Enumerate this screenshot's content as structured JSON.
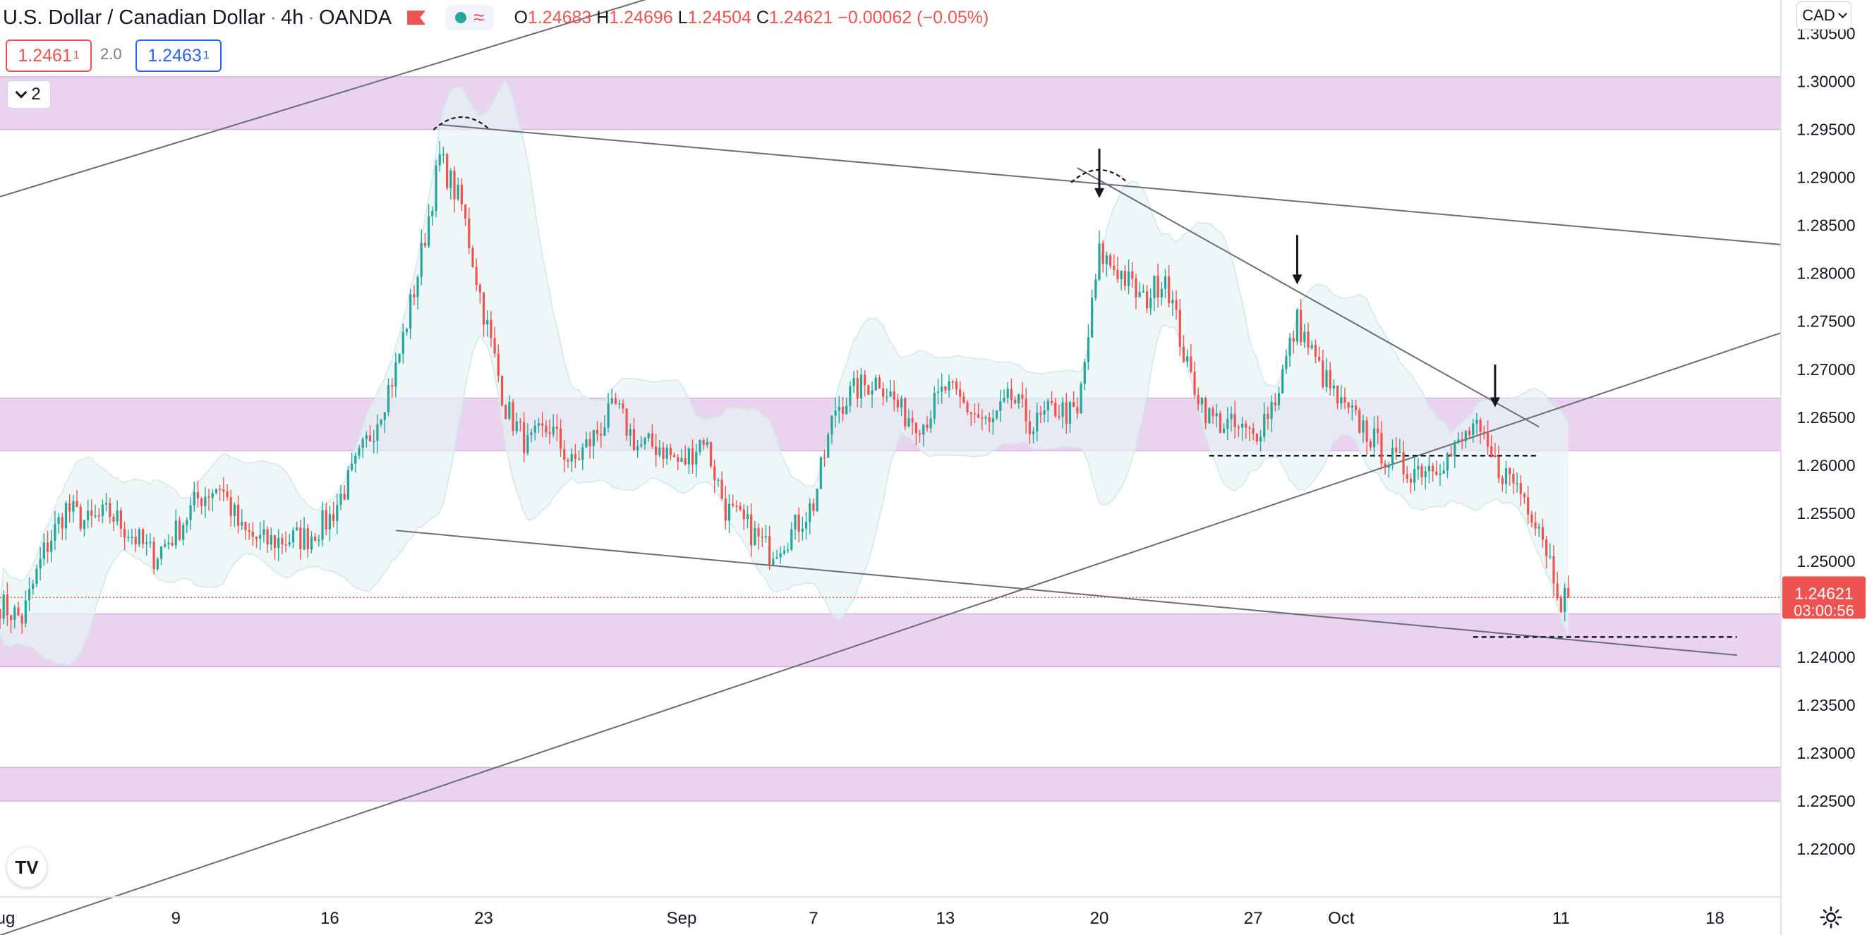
{
  "header": {
    "symbol": "U.S. Dollar / Canadian Dollar",
    "interval": "4h",
    "broker": "OANDA",
    "ohlc": {
      "o_label": "O",
      "o": "1.24683",
      "h_label": "H",
      "h": "1.24696",
      "l_label": "L",
      "l": "1.24504",
      "c_label": "C",
      "c": "1.24621",
      "change": "−0.00062 (−0.05%)"
    },
    "indicator_icon": "bollinger-bands-icon"
  },
  "trade": {
    "sell_price": "1.2461",
    "sell_pip": "1",
    "spread": "2.0",
    "buy_price": "1.2463",
    "buy_pip": "1"
  },
  "collapse_button": {
    "count": "2"
  },
  "currency_menu": {
    "label": "CAD"
  },
  "colors": {
    "up": "#26a69a",
    "down": "#ef5350",
    "zone": "#e1c4e9",
    "band_fill": "#e6f4f5",
    "line": "#787b86"
  },
  "chart_data": {
    "type": "candlestick",
    "x_start": "2021-08-01",
    "x_end": "2021-10-21",
    "ylim": [
      1.215,
      1.3085
    ],
    "y_ticks": [
      "1.30500",
      "1.30000",
      "1.29500",
      "1.29000",
      "1.28500",
      "1.28000",
      "1.27500",
      "1.27000",
      "1.26500",
      "1.26000",
      "1.25500",
      "1.25000",
      "1.24500",
      "1.24000",
      "1.23500",
      "1.23000",
      "1.22500",
      "1.22000"
    ],
    "x_ticks": [
      {
        "date": "2021-08-01",
        "label": "Aug"
      },
      {
        "date": "2021-08-09",
        "label": "9"
      },
      {
        "date": "2021-08-16",
        "label": "16"
      },
      {
        "date": "2021-08-23",
        "label": "23"
      },
      {
        "date": "2021-09-01",
        "label": "Sep"
      },
      {
        "date": "2021-09-07",
        "label": "7"
      },
      {
        "date": "2021-09-13",
        "label": "13"
      },
      {
        "date": "2021-09-20",
        "label": "20"
      },
      {
        "date": "2021-09-27",
        "label": "27"
      },
      {
        "date": "2021-10-01",
        "label": "Oct"
      },
      {
        "date": "2021-10-11",
        "label": "11"
      },
      {
        "date": "2021-10-18",
        "label": "18"
      }
    ],
    "last_price": {
      "value": "1.24621",
      "countdown": "03:00:56"
    },
    "zones": [
      {
        "low": 1.295,
        "high": 1.3005
      },
      {
        "low": 1.2615,
        "high": 1.267
      },
      {
        "low": 1.239,
        "high": 1.2445
      },
      {
        "low": 1.225,
        "high": 1.2285
      }
    ],
    "trendlines": [
      {
        "from": [
          "2021-08-01",
          1.288
        ],
        "to": [
          "2021-08-31",
          1.309
        ]
      },
      {
        "from": [
          "2021-08-21",
          1.2955
        ],
        "to": [
          "2021-10-21",
          1.283
        ]
      },
      {
        "from": [
          "2021-08-01",
          1.211
        ],
        "to": [
          "2021-10-21",
          1.2738
        ]
      },
      {
        "from": [
          "2021-08-19",
          1.2532
        ],
        "to": [
          "2021-10-19",
          1.2402
        ]
      },
      {
        "from": [
          "2021-09-19",
          1.291
        ],
        "to": [
          "2021-10-10",
          1.264
        ]
      }
    ],
    "dashed_levels": [
      {
        "from": "2021-09-25",
        "to": "2021-10-10",
        "value": 1.261
      },
      {
        "from": "2021-10-07",
        "to": "2021-10-19",
        "value": 1.2421
      }
    ],
    "arrows": [
      {
        "date": "2021-09-20",
        "from": 1.293,
        "to": 1.288
      },
      {
        "date": "2021-09-29",
        "from": 1.284,
        "to": 1.279
      },
      {
        "date": "2021-10-08",
        "from": 1.2705,
        "to": 1.2662
      }
    ],
    "tops": [
      {
        "date": "2021-08-22",
        "value": 1.296
      },
      {
        "date": "2021-09-20",
        "value": 1.2905
      }
    ],
    "anchors": [
      [
        "2021-08-01",
        1.2455
      ],
      [
        "2021-08-02",
        1.244
      ],
      [
        "2021-08-03",
        1.251
      ],
      [
        "2021-08-04",
        1.2555
      ],
      [
        "2021-08-05",
        1.254
      ],
      [
        "2021-08-06",
        1.255
      ],
      [
        "2021-08-08",
        1.2505
      ],
      [
        "2021-08-09",
        1.253
      ],
      [
        "2021-08-10",
        1.2565
      ],
      [
        "2021-08-11",
        1.258
      ],
      [
        "2021-08-12",
        1.253
      ],
      [
        "2021-08-13",
        1.252
      ],
      [
        "2021-08-15",
        1.2525
      ],
      [
        "2021-08-16",
        1.2545
      ],
      [
        "2021-08-17",
        1.259
      ],
      [
        "2021-08-18",
        1.264
      ],
      [
        "2021-08-19",
        1.27
      ],
      [
        "2021-08-20",
        1.28
      ],
      [
        "2021-08-21",
        1.292
      ],
      [
        "2021-08-22",
        1.287
      ],
      [
        "2021-08-23",
        1.276
      ],
      [
        "2021-08-24",
        1.266
      ],
      [
        "2021-08-25",
        1.262
      ],
      [
        "2021-08-26",
        1.264
      ],
      [
        "2021-08-27",
        1.26
      ],
      [
        "2021-08-29",
        1.266
      ],
      [
        "2021-08-30",
        1.262
      ],
      [
        "2021-08-31",
        1.262
      ],
      [
        "2021-09-01",
        1.26
      ],
      [
        "2021-09-02",
        1.263
      ],
      [
        "2021-09-03",
        1.2555
      ],
      [
        "2021-09-04",
        1.2535
      ],
      [
        "2021-09-05",
        1.251
      ],
      [
        "2021-09-06",
        1.253
      ],
      [
        "2021-09-07",
        1.256
      ],
      [
        "2021-09-08",
        1.266
      ],
      [
        "2021-09-09",
        1.268
      ],
      [
        "2021-09-10",
        1.269
      ],
      [
        "2021-09-11",
        1.2655
      ],
      [
        "2021-09-12",
        1.2645
      ],
      [
        "2021-09-13",
        1.268
      ],
      [
        "2021-09-14",
        1.266
      ],
      [
        "2021-09-15",
        1.264
      ],
      [
        "2021-09-16",
        1.267
      ],
      [
        "2021-09-17",
        1.264
      ],
      [
        "2021-09-18",
        1.266
      ],
      [
        "2021-09-19",
        1.265
      ],
      [
        "2021-09-20",
        1.282
      ],
      [
        "2021-09-21",
        1.28
      ],
      [
        "2021-09-22",
        1.277
      ],
      [
        "2021-09-23",
        1.28
      ],
      [
        "2021-09-24",
        1.27
      ],
      [
        "2021-09-25",
        1.265
      ],
      [
        "2021-09-26",
        1.264
      ],
      [
        "2021-09-27",
        1.263
      ],
      [
        "2021-09-28",
        1.267
      ],
      [
        "2021-09-29",
        1.275
      ],
      [
        "2021-09-30",
        1.27
      ],
      [
        "2021-10-01",
        1.266
      ],
      [
        "2021-10-02",
        1.264
      ],
      [
        "2021-10-03",
        1.261
      ],
      [
        "2021-10-04",
        1.2595
      ],
      [
        "2021-10-05",
        1.26
      ],
      [
        "2021-10-06",
        1.261
      ],
      [
        "2021-10-07",
        1.264
      ],
      [
        "2021-10-08",
        1.26
      ],
      [
        "2021-10-09",
        1.258
      ],
      [
        "2021-10-10",
        1.254
      ],
      [
        "2021-10-11",
        1.2462
      ]
    ]
  }
}
